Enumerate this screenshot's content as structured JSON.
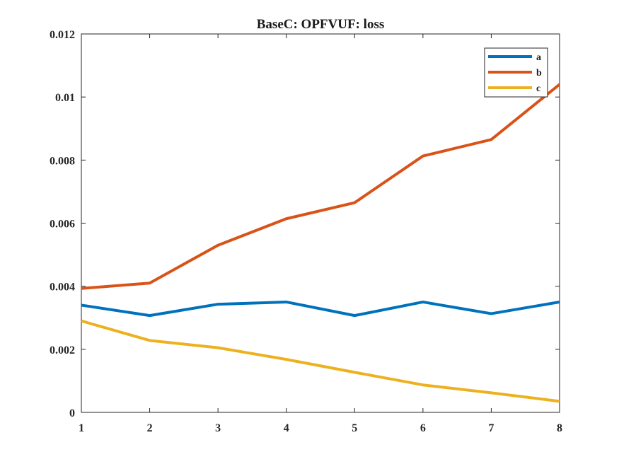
{
  "chart_data": {
    "type": "line",
    "title": "BaseC: OPFVUF: loss",
    "xlabel": "",
    "ylabel": "",
    "x": [
      1,
      2,
      3,
      4,
      5,
      6,
      7,
      8
    ],
    "xlim": [
      1,
      8
    ],
    "ylim": [
      0,
      0.012
    ],
    "x_ticks": [
      "1",
      "2",
      "3",
      "4",
      "5",
      "6",
      "7",
      "8"
    ],
    "y_ticks": [
      "0",
      "0.002",
      "0.004",
      "0.006",
      "0.008",
      "0.01",
      "0.012"
    ],
    "y_tick_values": [
      0,
      0.002,
      0.004,
      0.006,
      0.008,
      0.01,
      0.012
    ],
    "grid": false,
    "legend_position": "top-right",
    "series": [
      {
        "name": "a",
        "color": "#0072BD",
        "values": [
          0.0034,
          0.00307,
          0.00343,
          0.0035,
          0.00307,
          0.0035,
          0.00313,
          0.0035
        ]
      },
      {
        "name": "b",
        "color": "#D95319",
        "values": [
          0.00393,
          0.0041,
          0.0053,
          0.00614,
          0.00665,
          0.00813,
          0.00865,
          0.0104
        ]
      },
      {
        "name": "c",
        "color": "#EDB120",
        "values": [
          0.0029,
          0.00228,
          0.00205,
          0.00168,
          0.00127,
          0.00087,
          0.00062,
          0.00035
        ]
      }
    ]
  }
}
